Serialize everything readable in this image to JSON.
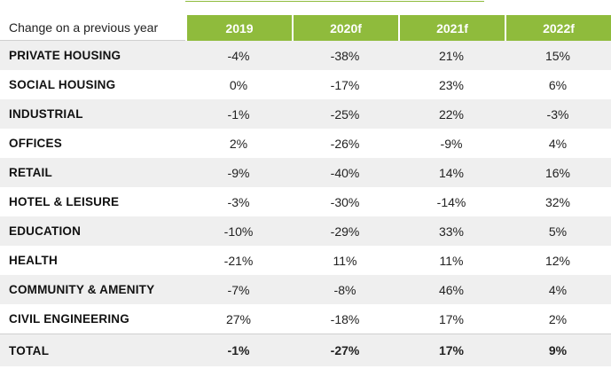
{
  "header": {
    "corner_label": "Change on a previous year",
    "years": [
      "2019",
      "2020f",
      "2021f",
      "2022f"
    ]
  },
  "rows": [
    {
      "label": "PRIVATE HOUSING",
      "values": [
        "-4%",
        "-38%",
        "21%",
        "15%"
      ]
    },
    {
      "label": "SOCIAL HOUSING",
      "values": [
        "0%",
        "-17%",
        "23%",
        "6%"
      ]
    },
    {
      "label": "INDUSTRIAL",
      "values": [
        "-1%",
        "-25%",
        "22%",
        "-3%"
      ]
    },
    {
      "label": "OFFICES",
      "values": [
        "2%",
        "-26%",
        "-9%",
        "4%"
      ]
    },
    {
      "label": "RETAIL",
      "values": [
        "-9%",
        "-40%",
        "14%",
        "16%"
      ]
    },
    {
      "label": "HOTEL & LEISURE",
      "values": [
        "-3%",
        "-30%",
        "-14%",
        "32%"
      ]
    },
    {
      "label": "EDUCATION",
      "values": [
        "-10%",
        "-29%",
        "33%",
        "5%"
      ]
    },
    {
      "label": "HEALTH",
      "values": [
        "-21%",
        "11%",
        "11%",
        "12%"
      ]
    },
    {
      "label": "COMMUNITY & AMENITY",
      "values": [
        "-7%",
        "-8%",
        "46%",
        "4%"
      ]
    },
    {
      "label": "CIVIL ENGINEERING",
      "values": [
        "27%",
        "-18%",
        "17%",
        "2%"
      ]
    }
  ],
  "total": {
    "label": "TOTAL",
    "values": [
      "-1%",
      "-27%",
      "17%",
      "9%"
    ]
  },
  "colors": {
    "header_green": "#8fbb3c",
    "row_shade": "#efefef"
  }
}
